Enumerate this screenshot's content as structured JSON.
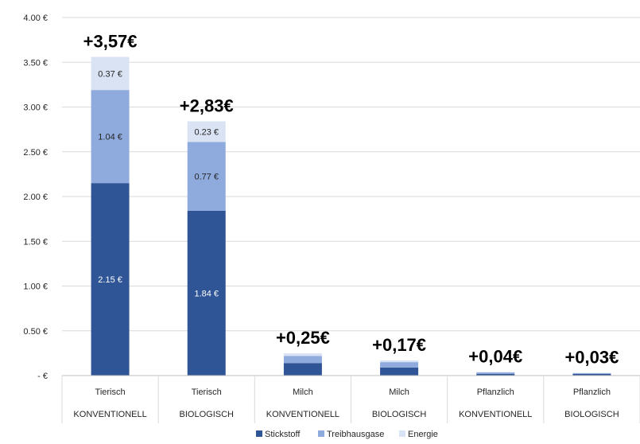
{
  "chart_data": {
    "type": "bar",
    "stacked": true,
    "categories": [
      [
        "Tierisch",
        "KONVENTIONELL"
      ],
      [
        "Tierisch",
        "BIOLOGISCH"
      ],
      [
        "Milch",
        "KONVENTIONELL"
      ],
      [
        "Milch",
        "BIOLOGISCH"
      ],
      [
        "Pflanzlich",
        "KONVENTIONELL"
      ],
      [
        "Pflanzlich",
        "BIOLOGISCH"
      ]
    ],
    "series": [
      {
        "name": "Stickstoff",
        "color": "#2f5597",
        "values": [
          2.15,
          1.84,
          0.14,
          0.09,
          0.02,
          0.02
        ],
        "labels": [
          "2.15 €",
          "1.84 €",
          "",
          "",
          "",
          ""
        ],
        "label_color": "#ffffff"
      },
      {
        "name": "Treibhausgase",
        "color": "#8faadc",
        "values": [
          1.04,
          0.77,
          0.08,
          0.06,
          0.015,
          0.008
        ],
        "labels": [
          "1.04 €",
          "0.77 €",
          "",
          "",
          "",
          ""
        ],
        "label_color": "#262626"
      },
      {
        "name": "Energie",
        "color": "#dae3f3",
        "values": [
          0.37,
          0.23,
          0.03,
          0.02,
          0.005,
          0.002
        ],
        "labels": [
          "0.37 €",
          "0.23 €",
          "",
          "",
          "",
          ""
        ],
        "label_color": "#262626"
      }
    ],
    "totals": [
      "+3,57€",
      "+2,83€",
      "+0,25€",
      "+0,17€",
      "+0,04€",
      "+0,03€"
    ],
    "ylim": [
      0,
      4.0
    ],
    "yticks": [
      0,
      0.5,
      1.0,
      1.5,
      2.0,
      2.5,
      3.0,
      3.5,
      4.0
    ],
    "ytick_labels": [
      "-  €",
      "0.50 €",
      "1.00 €",
      "1.50 €",
      "2.00 €",
      "2.50 €",
      "3.00 €",
      "3.50 €",
      "4.00 €"
    ],
    "grid": true,
    "legend_position": "bottom-center",
    "title": "",
    "xlabel": "",
    "ylabel": ""
  }
}
